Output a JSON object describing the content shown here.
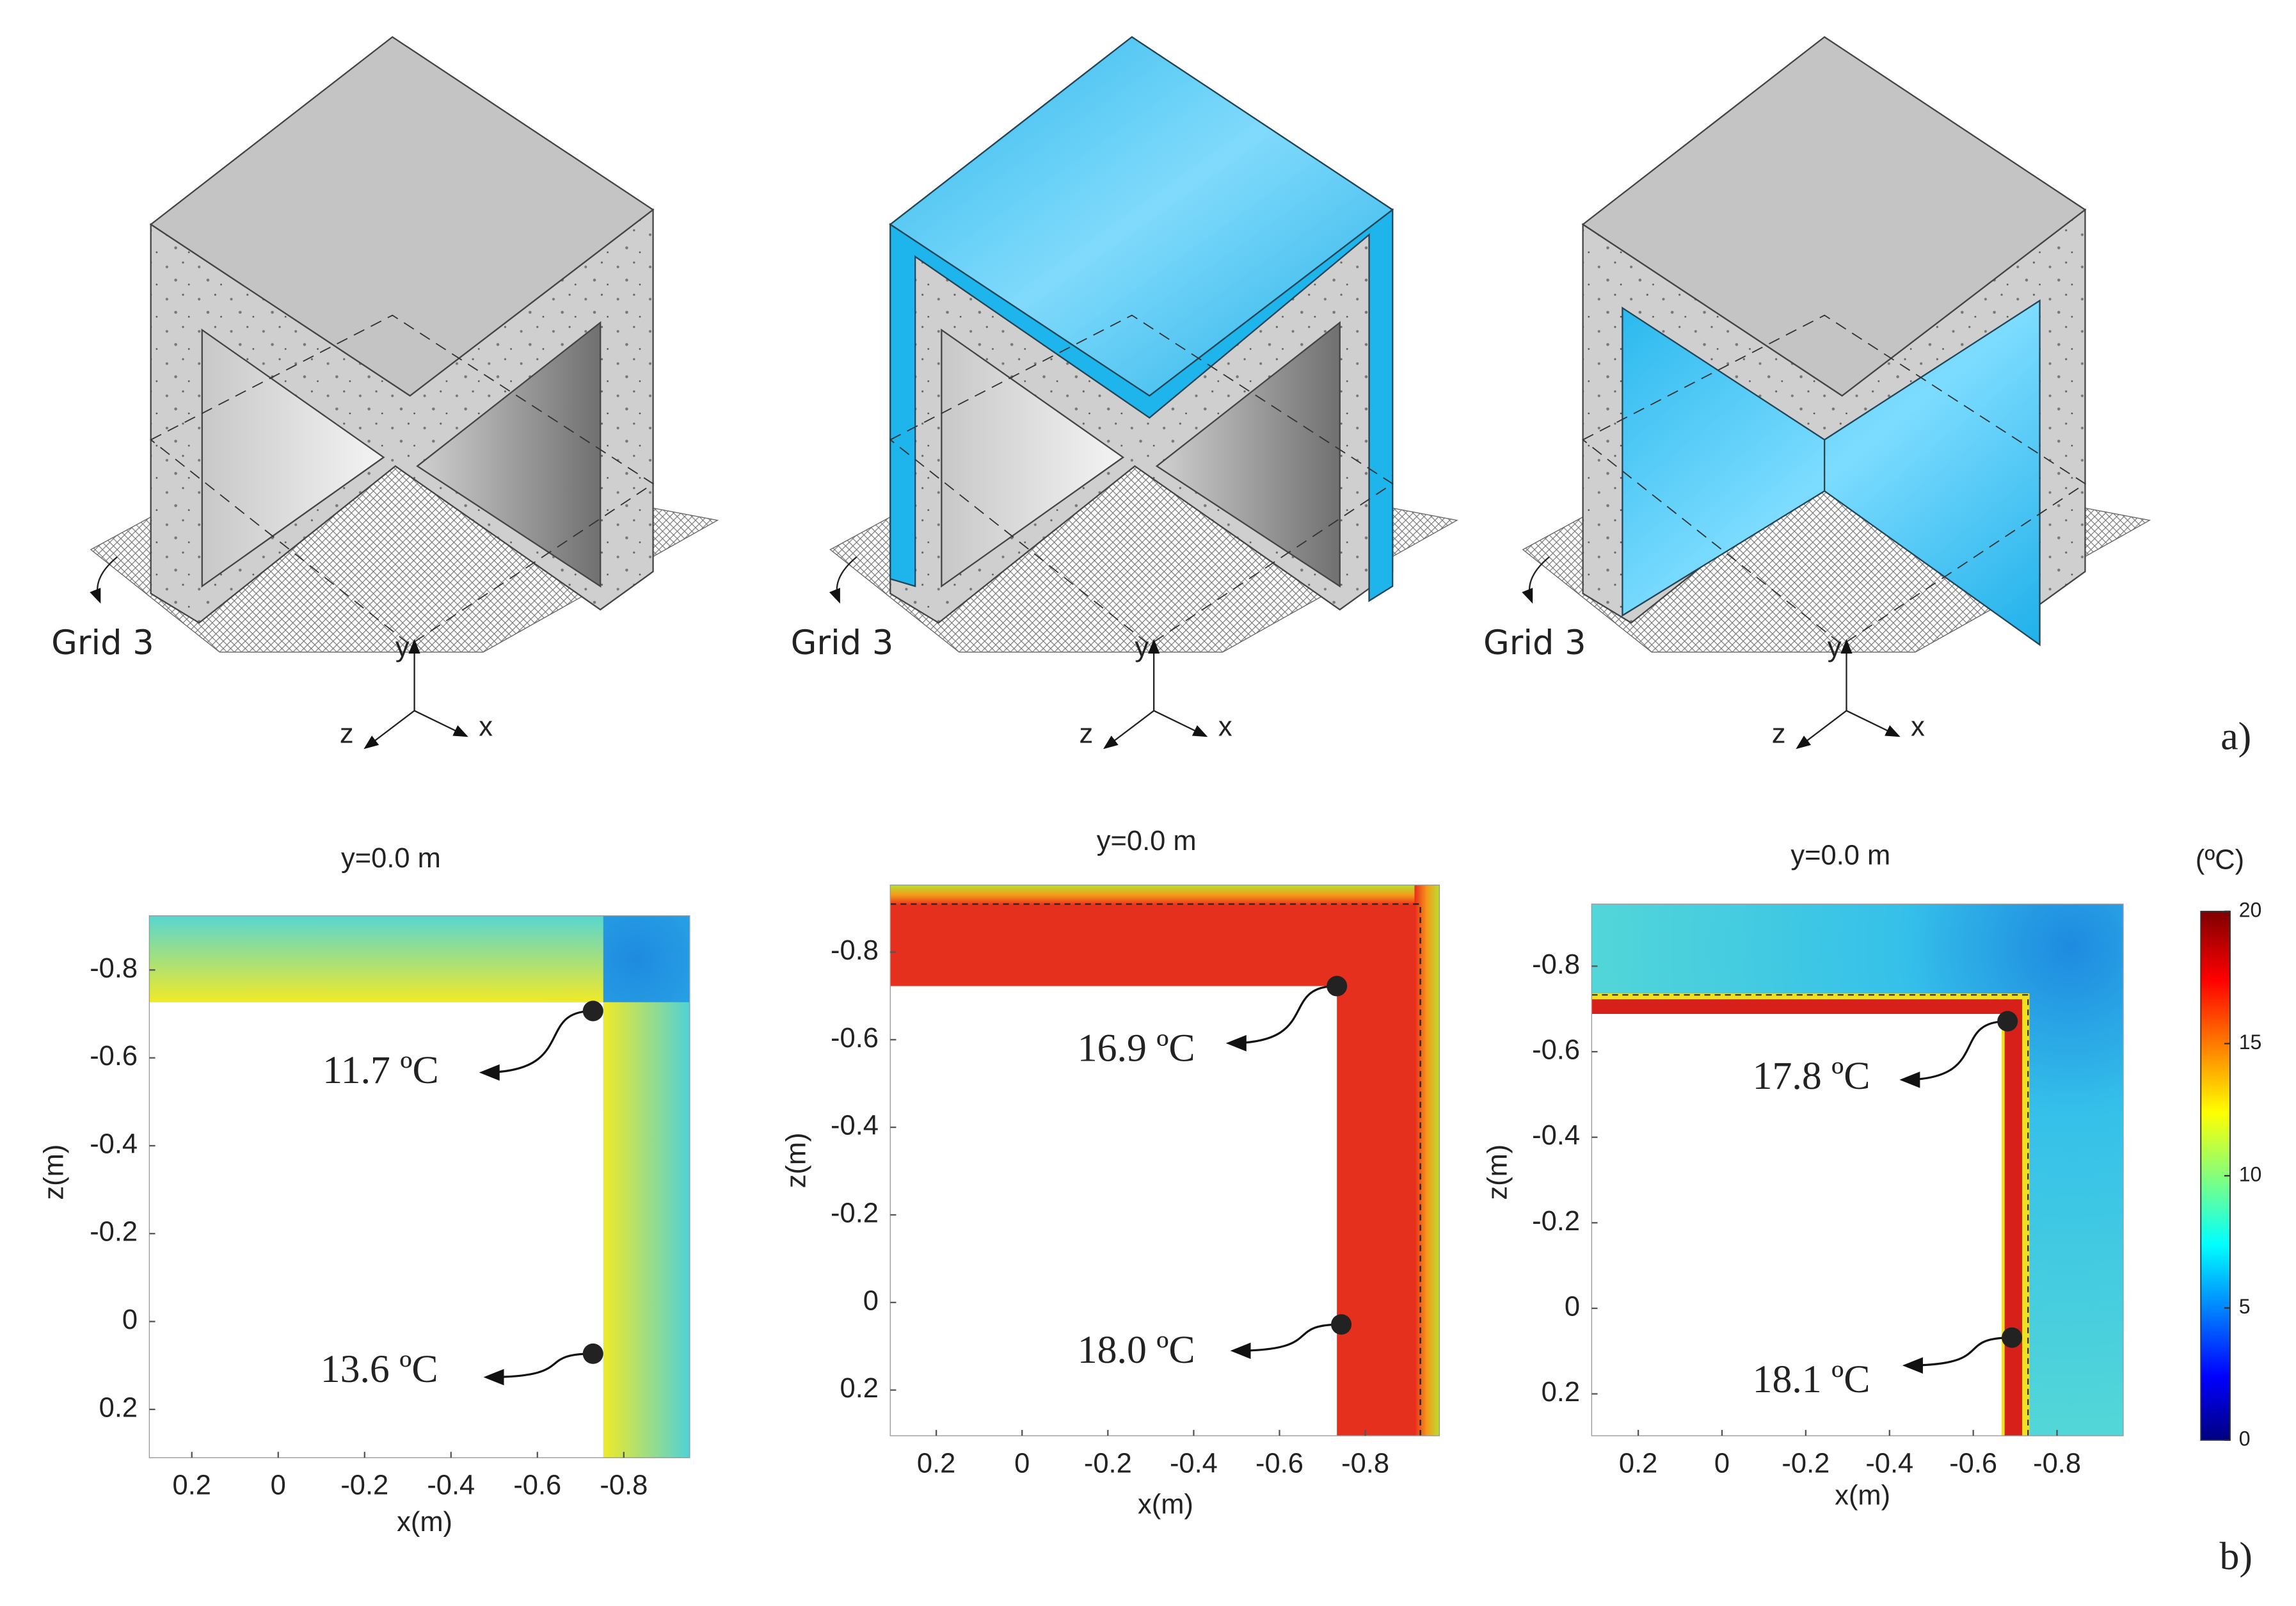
{
  "panel_a": {
    "label": "a)",
    "models": [
      {
        "grid_label": "Grid 3",
        "axes": {
          "x": "x",
          "y": "y",
          "z": "z"
        }
      },
      {
        "grid_label": "Grid 3",
        "axes": {
          "x": "x",
          "y": "y",
          "z": "z"
        }
      },
      {
        "grid_label": "Grid 3",
        "axes": {
          "x": "x",
          "y": "y",
          "z": "z"
        }
      }
    ]
  },
  "panel_b": {
    "label": "b)",
    "plots": [
      {
        "title": "y=0.0 m",
        "xlabel": "x(m)",
        "ylabel": "z(m)",
        "xticks": [
          0.2,
          0,
          -0.2,
          -0.4,
          -0.6,
          -0.8
        ],
        "yticks": [
          -0.8,
          -0.6,
          -0.4,
          -0.2,
          0,
          0.2
        ],
        "annotations": [
          {
            "label": "11.7 ºC"
          },
          {
            "label": "13.6 ºC"
          }
        ]
      },
      {
        "title": "y=0.0 m",
        "xlabel": "x(m)",
        "ylabel": "z(m)",
        "xticks": [
          0.2,
          0,
          -0.2,
          -0.4,
          -0.6,
          -0.8
        ],
        "yticks": [
          -0.8,
          -0.6,
          -0.4,
          -0.2,
          0,
          0.2
        ],
        "annotations": [
          {
            "label": "16.9 ºC"
          },
          {
            "label": "18.0 ºC"
          }
        ]
      },
      {
        "title": "y=0.0 m",
        "xlabel": "x(m)",
        "ylabel": "z(m)",
        "xticks": [
          0.2,
          0,
          -0.2,
          -0.4,
          -0.6,
          -0.8
        ],
        "yticks": [
          -0.8,
          -0.6,
          -0.4,
          -0.2,
          0,
          0.2
        ],
        "annotations": [
          {
            "label": "17.8 ºC"
          },
          {
            "label": "18.1 ºC"
          }
        ]
      }
    ],
    "colorbar": {
      "title": "(ºC)",
      "ticks": [
        0,
        5,
        10,
        15,
        20
      ]
    }
  }
}
